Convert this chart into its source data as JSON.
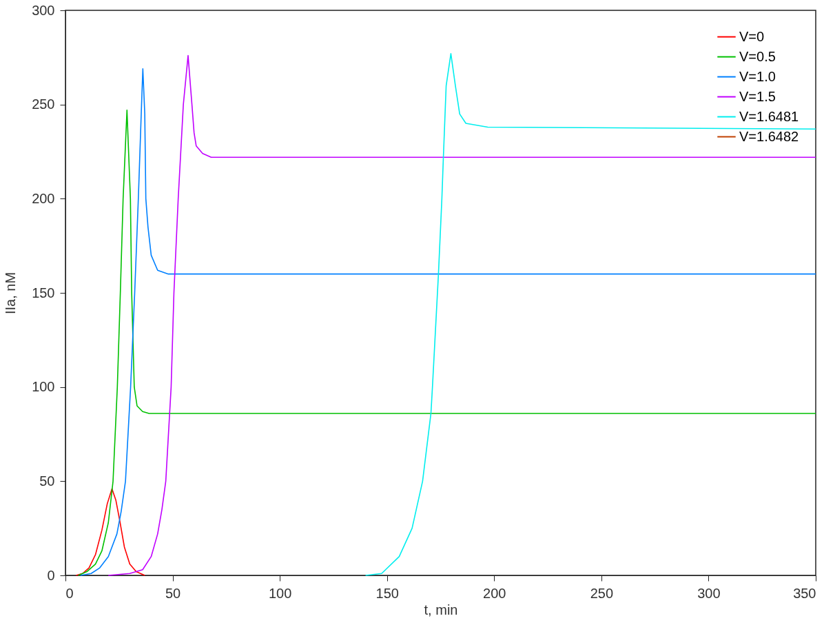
{
  "chart_data": {
    "type": "line",
    "xlabel": "t, min",
    "ylabel": "IIa, nM",
    "xlim": [
      0,
      350
    ],
    "xticks": [
      0,
      50,
      100,
      150,
      200,
      250,
      300,
      350
    ],
    "ylim": [
      0,
      300
    ],
    "yticks": [
      0,
      50,
      100,
      150,
      200,
      250,
      300
    ],
    "grid": false,
    "legend": "top right",
    "marker": "none",
    "line_style": "solid",
    "series": [
      {
        "name": "V=0",
        "color": "#ff0000",
        "x": [
          5,
          8,
          11,
          14,
          17,
          19.5,
          21.7,
          23.5,
          25.5,
          27.5,
          30,
          33,
          37
        ],
        "values": [
          0,
          1,
          4,
          11,
          24,
          38,
          46,
          40,
          28,
          15,
          6,
          2,
          0
        ]
      },
      {
        "name": "V=0.5",
        "color": "#00c000",
        "x": [
          6,
          10,
          14,
          17,
          20,
          22.2,
          24.2,
          25.6,
          26.9,
          28.7,
          30.3,
          30.9,
          32.1,
          33.4,
          36,
          39,
          350
        ],
        "values": [
          0,
          2,
          6,
          13,
          28,
          50,
          100,
          150,
          200,
          247,
          200,
          150,
          100,
          90,
          87,
          86,
          86
        ]
      },
      {
        "name": "V=1.0",
        "color": "#0080ff",
        "x": [
          7,
          12,
          16,
          20,
          24,
          26,
          28,
          30.4,
          32.3,
          34,
          35.5,
          36.1,
          37,
          37.5,
          38.5,
          40,
          43,
          48,
          350
        ],
        "values": [
          0,
          1,
          4,
          10,
          22,
          34,
          50,
          100,
          150,
          200,
          250,
          269,
          245,
          200,
          185,
          170,
          162,
          160,
          160
        ]
      },
      {
        "name": "V=1.5",
        "color": "#c000ff",
        "x": [
          20,
          30,
          36,
          40,
          43,
          45,
          46.8,
          49.3,
          50.6,
          52.6,
          55,
          57.2,
          59,
          60,
          61,
          64,
          68,
          350
        ],
        "values": [
          0,
          1,
          3,
          10,
          22,
          35,
          50,
          100,
          150,
          200,
          250,
          276,
          250,
          235,
          228,
          224,
          222,
          222
        ]
      },
      {
        "name": "V=1.6481",
        "color": "#00eeee",
        "x": [
          140,
          147.5,
          155.7,
          161.7,
          166.6,
          170.5,
          171.2,
          174,
          175.6,
          176.3,
          177.6,
          179.8,
          181.9,
          183.9,
          186.8,
          197,
          350
        ],
        "values": [
          0,
          1,
          10,
          25,
          50,
          86,
          100,
          160,
          200,
          222,
          260,
          277,
          260,
          245,
          240,
          238,
          237
        ]
      },
      {
        "name": "V=1.6482",
        "color": "#c04000"
      }
    ]
  }
}
